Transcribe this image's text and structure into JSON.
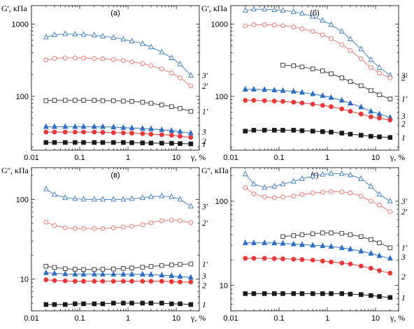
{
  "colors": {
    "black": "#1a1a1a",
    "red": "#e8393a",
    "blue": "#2f6ec2",
    "dark_gray": "#444444",
    "salmon": "#f07c74",
    "light_blue": "#4a86c8"
  },
  "x_ticks": [
    "0.01",
    "0.1",
    "1",
    "10"
  ],
  "chart_data": [
    {
      "type": "line",
      "panel": "(а)",
      "ylabel": "G', кПа",
      "xlabel": "γ, %",
      "x_scale": "log",
      "y_scale": "log",
      "xlim": [
        0.01,
        30
      ],
      "ylim": [
        18,
        1800
      ],
      "y_ticks": [
        "1000",
        "100"
      ],
      "series": [
        {
          "name": "3'",
          "marker": "open-triangle",
          "color": "#4a86c8",
          "x": [
            0.02,
            0.03,
            0.05,
            0.08,
            0.12,
            0.2,
            0.3,
            0.5,
            0.8,
            1.2,
            2,
            3,
            5,
            8,
            12,
            20
          ],
          "y": [
            660,
            710,
            730,
            725,
            715,
            700,
            680,
            650,
            615,
            580,
            535,
            480,
            410,
            340,
            280,
            195
          ]
        },
        {
          "name": "2'",
          "marker": "open-circle",
          "color": "#f07c74",
          "x": [
            0.02,
            0.03,
            0.05,
            0.08,
            0.12,
            0.2,
            0.3,
            0.5,
            0.8,
            1.2,
            2,
            3,
            5,
            8,
            12,
            20
          ],
          "y": [
            320,
            335,
            340,
            340,
            338,
            335,
            330,
            322,
            312,
            300,
            285,
            265,
            240,
            210,
            180,
            140
          ]
        },
        {
          "name": "1'",
          "marker": "open-square",
          "color": "#444444",
          "x": [
            0.02,
            0.03,
            0.05,
            0.08,
            0.12,
            0.2,
            0.3,
            0.5,
            0.8,
            1.2,
            2,
            3,
            5,
            8,
            12,
            20
          ],
          "y": [
            87,
            88,
            88,
            88,
            88,
            88,
            87,
            87,
            86,
            85,
            83,
            80,
            76,
            72,
            68,
            62
          ]
        },
        {
          "name": "3",
          "marker": "filled-triangle",
          "color": "#2f6ec2",
          "x": [
            0.02,
            0.03,
            0.05,
            0.08,
            0.12,
            0.2,
            0.3,
            0.5,
            0.8,
            1.2,
            2,
            3,
            5,
            8,
            12,
            20
          ],
          "y": [
            38,
            38,
            38,
            38,
            38,
            38,
            38,
            37.5,
            37,
            36.5,
            36,
            35.5,
            34.5,
            33.5,
            32.5,
            31
          ]
        },
        {
          "name": "2",
          "marker": "filled-circle",
          "color": "#e8393a",
          "x": [
            0.02,
            0.03,
            0.05,
            0.08,
            0.12,
            0.2,
            0.3,
            0.5,
            0.8,
            1.2,
            2,
            3,
            5,
            8,
            12,
            20
          ],
          "y": [
            32,
            32,
            32,
            32,
            32,
            32,
            31.8,
            31.5,
            31.2,
            31,
            30.5,
            30,
            29.5,
            29,
            28,
            27
          ]
        },
        {
          "name": "1",
          "marker": "filled-square",
          "color": "#1a1a1a",
          "x": [
            0.02,
            0.03,
            0.05,
            0.08,
            0.12,
            0.2,
            0.3,
            0.5,
            0.8,
            1.2,
            2,
            3,
            5,
            8,
            12,
            20
          ],
          "y": [
            23,
            23,
            23,
            23,
            23,
            23,
            23,
            23,
            23,
            22.8,
            22.7,
            22.6,
            22.5,
            22.4,
            22.2,
            22
          ]
        }
      ]
    },
    {
      "type": "line",
      "panel": "(б)",
      "ylabel": "G', кПа",
      "xlabel": "γ, %",
      "x_scale": "log",
      "y_scale": "log",
      "xlim": [
        0.01,
        30
      ],
      "ylim": [
        18,
        1800
      ],
      "y_ticks": [
        "1000",
        "100"
      ],
      "series": [
        {
          "name": "3'",
          "marker": "open-triangle",
          "color": "#4a86c8",
          "x": [
            0.02,
            0.03,
            0.05,
            0.08,
            0.12,
            0.2,
            0.3,
            0.5,
            0.8,
            1.2,
            2,
            3,
            5,
            8,
            12,
            20
          ],
          "y": [
            1550,
            1600,
            1600,
            1580,
            1540,
            1480,
            1400,
            1270,
            1120,
            980,
            790,
            620,
            450,
            320,
            250,
            195
          ]
        },
        {
          "name": "2'",
          "marker": "open-circle",
          "color": "#f07c74",
          "x": [
            0.02,
            0.03,
            0.05,
            0.08,
            0.12,
            0.2,
            0.3,
            0.5,
            0.8,
            1.2,
            2,
            3,
            5,
            8,
            12,
            20
          ],
          "y": [
            940,
            980,
            980,
            970,
            950,
            910,
            860,
            790,
            710,
            630,
            520,
            430,
            330,
            250,
            210,
            180
          ]
        },
        {
          "name": "1'",
          "marker": "open-square",
          "color": "#444444",
          "x": [
            0.12,
            0.2,
            0.3,
            0.5,
            0.8,
            1.2,
            2,
            3,
            5,
            8,
            12,
            20
          ],
          "y": [
            270,
            265,
            255,
            240,
            225,
            205,
            180,
            160,
            140,
            120,
            105,
            92
          ]
        },
        {
          "name": "3",
          "marker": "filled-triangle",
          "color": "#2f6ec2",
          "x": [
            0.02,
            0.03,
            0.05,
            0.08,
            0.12,
            0.2,
            0.3,
            0.5,
            0.8,
            1.2,
            2,
            3,
            5,
            8,
            12,
            20
          ],
          "y": [
            125,
            125,
            124,
            122,
            120,
            117,
            113,
            108,
            102,
            96,
            88,
            80,
            71,
            62,
            57,
            51
          ]
        },
        {
          "name": "2",
          "marker": "filled-circle",
          "color": "#e8393a",
          "x": [
            0.02,
            0.03,
            0.05,
            0.08,
            0.12,
            0.2,
            0.3,
            0.5,
            0.8,
            1.2,
            2,
            3,
            5,
            8,
            12,
            20
          ],
          "y": [
            88,
            88,
            87,
            86,
            85,
            83,
            81,
            78,
            75,
            72,
            67,
            62,
            57,
            52,
            50,
            47
          ]
        },
        {
          "name": "1",
          "marker": "filled-square",
          "color": "#1a1a1a",
          "x": [
            0.02,
            0.03,
            0.05,
            0.08,
            0.12,
            0.2,
            0.3,
            0.5,
            0.8,
            1.2,
            2,
            3,
            5,
            8,
            12,
            20
          ],
          "y": [
            33,
            34,
            34,
            34,
            34,
            34,
            33.5,
            33,
            32.5,
            32,
            31,
            30,
            29,
            28,
            27.5,
            27
          ]
        }
      ]
    },
    {
      "type": "line",
      "panel": "(в)",
      "ylabel": "G'', кПа",
      "xlabel": "γ, %",
      "x_scale": "log",
      "y_scale": "log",
      "xlim": [
        0.01,
        30
      ],
      "ylim": [
        4,
        250
      ],
      "y_ticks": [
        "100",
        "10"
      ],
      "series": [
        {
          "name": "3'",
          "marker": "open-triangle",
          "color": "#4a86c8",
          "x": [
            0.02,
            0.03,
            0.05,
            0.08,
            0.12,
            0.2,
            0.3,
            0.5,
            0.8,
            1.2,
            2,
            3,
            5,
            8,
            12,
            20
          ],
          "y": [
            135,
            115,
            105,
            102,
            100,
            100,
            100,
            100,
            100,
            102,
            105,
            108,
            110,
            108,
            100,
            82
          ]
        },
        {
          "name": "2'",
          "marker": "open-circle",
          "color": "#f07c74",
          "x": [
            0.02,
            0.03,
            0.05,
            0.08,
            0.12,
            0.2,
            0.3,
            0.5,
            0.8,
            1.2,
            2,
            3,
            5,
            8,
            12,
            20
          ],
          "y": [
            52,
            47,
            44,
            43,
            43,
            43,
            43,
            44,
            45,
            46,
            48,
            51,
            54,
            55,
            54,
            51
          ]
        },
        {
          "name": "1'",
          "marker": "open-square",
          "color": "#444444",
          "x": [
            0.02,
            0.03,
            0.05,
            0.08,
            0.12,
            0.2,
            0.3,
            0.5,
            0.8,
            1.2,
            2,
            3,
            5,
            8,
            12,
            20
          ],
          "y": [
            14.5,
            14,
            13.5,
            13.3,
            13.2,
            13.2,
            13.3,
            13.4,
            13.6,
            13.8,
            14.1,
            14.4,
            14.8,
            15.1,
            15.3,
            15.5
          ]
        },
        {
          "name": "3",
          "marker": "filled-triangle",
          "color": "#2f6ec2",
          "x": [
            0.02,
            0.03,
            0.05,
            0.08,
            0.12,
            0.2,
            0.3,
            0.5,
            0.8,
            1.2,
            2,
            3,
            5,
            8,
            12,
            20
          ],
          "y": [
            12,
            11.8,
            11.6,
            11.5,
            11.5,
            11.5,
            11.5,
            11.5,
            11.5,
            11.5,
            11.5,
            11.4,
            11.2,
            11,
            10.8,
            10.5
          ]
        },
        {
          "name": "2",
          "marker": "filled-circle",
          "color": "#e8393a",
          "x": [
            0.02,
            0.03,
            0.05,
            0.08,
            0.12,
            0.2,
            0.3,
            0.5,
            0.8,
            1.2,
            2,
            3,
            5,
            8,
            12,
            20
          ],
          "y": [
            9.8,
            9.6,
            9.5,
            9.4,
            9.4,
            9.4,
            9.4,
            9.4,
            9.4,
            9.4,
            9.4,
            9.4,
            9.4,
            9.3,
            9.2,
            9.2
          ]
        },
        {
          "name": "1",
          "marker": "filled-square",
          "color": "#1a1a1a",
          "x": [
            0.02,
            0.03,
            0.05,
            0.08,
            0.12,
            0.2,
            0.3,
            0.5,
            0.8,
            1.2,
            2,
            3,
            5,
            8,
            12,
            20
          ],
          "y": [
            4.8,
            4.8,
            4.8,
            4.9,
            4.9,
            4.9,
            4.9,
            5,
            5,
            5,
            5,
            5,
            5,
            4.9,
            4.9,
            4.8
          ]
        }
      ]
    },
    {
      "type": "line",
      "panel": "(г)",
      "ylabel": "G'', кПа",
      "xlabel": "γ, %",
      "x_scale": "log",
      "y_scale": "log",
      "xlim": [
        0.01,
        30
      ],
      "ylim": [
        5,
        250
      ],
      "y_ticks": [
        "100",
        "10"
      ],
      "series": [
        {
          "name": "3'",
          "marker": "open-triangle",
          "color": "#4a86c8",
          "x": [
            0.02,
            0.03,
            0.05,
            0.08,
            0.12,
            0.2,
            0.3,
            0.5,
            0.8,
            1.2,
            2,
            3,
            5,
            8,
            12,
            20
          ],
          "y": [
            210,
            160,
            145,
            150,
            160,
            172,
            185,
            198,
            208,
            213,
            212,
            205,
            185,
            150,
            120,
            100
          ]
        },
        {
          "name": "2'",
          "marker": "open-circle",
          "color": "#f07c74",
          "x": [
            0.02,
            0.03,
            0.05,
            0.08,
            0.12,
            0.2,
            0.3,
            0.5,
            0.8,
            1.2,
            2,
            3,
            5,
            8,
            12,
            20
          ],
          "y": [
            145,
            122,
            112,
            110,
            112,
            115,
            120,
            125,
            128,
            130,
            129,
            125,
            115,
            100,
            90,
            75
          ]
        },
        {
          "name": "1'",
          "marker": "open-square",
          "color": "#444444",
          "x": [
            0.12,
            0.2,
            0.3,
            0.5,
            0.8,
            1.2,
            2,
            3,
            5,
            8,
            12,
            20
          ],
          "y": [
            38,
            39,
            40,
            41,
            42,
            42,
            41.5,
            40,
            38,
            35,
            32,
            28
          ]
        },
        {
          "name": "3",
          "marker": "filled-triangle",
          "color": "#2f6ec2",
          "x": [
            0.02,
            0.03,
            0.05,
            0.08,
            0.12,
            0.2,
            0.3,
            0.5,
            0.8,
            1.2,
            2,
            3,
            5,
            8,
            12,
            20
          ],
          "y": [
            32,
            32,
            32,
            31.8,
            31.5,
            31,
            30.5,
            30,
            29.5,
            29,
            28,
            27,
            25.5,
            24,
            22.5,
            21
          ]
        },
        {
          "name": "2",
          "marker": "filled-circle",
          "color": "#e8393a",
          "x": [
            0.02,
            0.03,
            0.05,
            0.08,
            0.12,
            0.2,
            0.3,
            0.5,
            0.8,
            1.2,
            2,
            3,
            5,
            8,
            12,
            20
          ],
          "y": [
            21,
            21,
            21,
            20.8,
            20.7,
            20.5,
            20.3,
            20,
            19.5,
            19,
            18.5,
            18,
            17,
            16,
            15,
            14
          ]
        },
        {
          "name": "1",
          "marker": "filled-square",
          "color": "#1a1a1a",
          "x": [
            0.02,
            0.03,
            0.05,
            0.08,
            0.12,
            0.2,
            0.3,
            0.5,
            0.8,
            1.2,
            2,
            3,
            5,
            8,
            12,
            20
          ],
          "y": [
            8,
            8,
            8,
            8,
            8,
            8,
            8,
            8,
            8,
            8,
            8,
            7.9,
            7.8,
            7.6,
            7.4,
            7.2
          ]
        }
      ]
    }
  ]
}
